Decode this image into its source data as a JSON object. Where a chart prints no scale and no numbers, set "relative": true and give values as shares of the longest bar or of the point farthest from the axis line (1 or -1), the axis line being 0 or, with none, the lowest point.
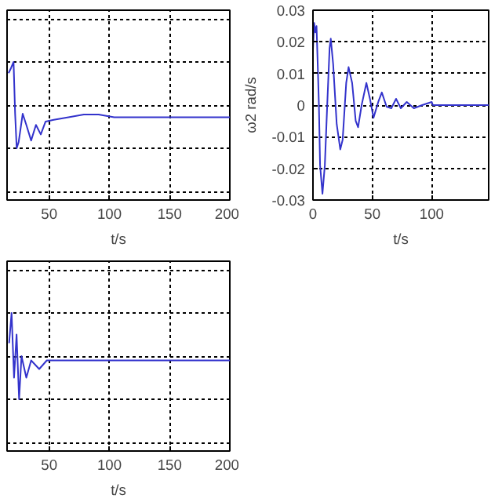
{
  "chart_data": [
    {
      "type": "line",
      "relative": true,
      "xlabel": "t/s",
      "x": [
        16.25,
        18.3,
        20.4,
        21.7,
        23,
        24.6,
        28,
        31,
        35,
        39,
        43,
        47,
        53.75,
        66,
        78.75,
        91,
        104,
        116,
        200
      ],
      "series": [
        {
          "color": "#3333cc",
          "values": [
            0.87,
            0.93,
            1,
            0.4,
            0,
            0.07,
            0.4,
            0.27,
            0.09,
            0.27,
            0.16,
            0.31,
            0.33,
            0.36,
            0.39,
            0.39,
            0.36,
            0.36,
            0.36
          ]
        }
      ],
      "xlim": [
        15,
        200
      ],
      "xticks": [
        50,
        100,
        150,
        200
      ],
      "grid": true
    },
    {
      "type": "line",
      "xlabel": "t/s",
      "ylabel": "ω2 rad/s",
      "x": [
        0,
        1,
        2,
        3,
        4,
        5,
        6,
        8,
        10,
        12,
        14,
        15,
        17,
        20,
        23,
        25,
        28,
        30,
        33,
        36,
        38,
        41,
        45,
        48,
        51,
        55,
        58,
        62,
        66,
        70,
        74,
        79,
        85,
        92,
        100,
        101,
        148
      ],
      "series": [
        {
          "color": "#3333cc",
          "values": [
            0.0175,
            0.026,
            0.023,
            0.025,
            0.013,
            0,
            -0.019,
            -0.028,
            -0.019,
            0,
            0.018,
            0.021,
            0.013,
            -0.006,
            -0.014,
            -0.011,
            0.007,
            0.012,
            0.007,
            -0.005,
            -0.007,
            0,
            0.007,
            0.002,
            -0.004,
            0.001,
            0.004,
            -0.0005,
            -0.001,
            0.002,
            -0.001,
            0.001,
            -0.001,
            0,
            0.001,
            0,
            0
          ]
        }
      ],
      "xlim": [
        0,
        148
      ],
      "xticks": [
        0,
        50,
        100
      ],
      "ylim": [
        -0.03,
        0.03
      ],
      "yticks": [
        -0.03,
        -0.02,
        -0.01,
        0,
        0.01,
        0.02,
        0.03
      ],
      "grid": true
    },
    {
      "type": "line",
      "relative": true,
      "xlabel": "t/s",
      "x": [
        16.7,
        18.75,
        20.8,
        22.9,
        25,
        27,
        31,
        35,
        41.7,
        48,
        200
      ],
      "series": [
        {
          "color": "#3333cc",
          "values": [
            0.65,
            1,
            0.25,
            0.75,
            0,
            0.5,
            0.25,
            0.45,
            0.35,
            0.45,
            0.45
          ]
        }
      ],
      "xlim": [
        15,
        200
      ],
      "xticks": [
        50,
        100,
        150,
        200
      ],
      "grid": true
    }
  ]
}
